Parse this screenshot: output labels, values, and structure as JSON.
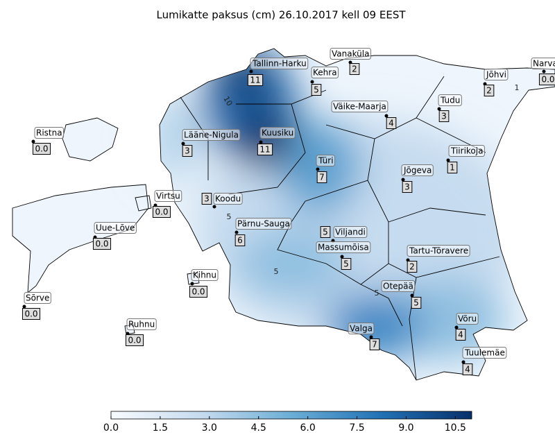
{
  "title": "Lumikatte paksus (cm) 26.10.2017 kell 09 EEST",
  "stations": [
    {
      "name": "Tallinn-Harku",
      "value": "11"
    },
    {
      "name": "Vanaküla",
      "value": "2"
    },
    {
      "name": "Kehra",
      "value": "5"
    },
    {
      "name": "Narva",
      "value": "0.0"
    },
    {
      "name": "Jõhvi",
      "value": "2"
    },
    {
      "name": "Tudu",
      "value": "3"
    },
    {
      "name": "Väike-Maarja",
      "value": "4"
    },
    {
      "name": "Ristna",
      "value": "0.0"
    },
    {
      "name": "Lääne-Nigula",
      "value": "3"
    },
    {
      "name": "Kuusiku",
      "value": "11"
    },
    {
      "name": "Tiirikoja",
      "value": "1"
    },
    {
      "name": "Türi",
      "value": "7"
    },
    {
      "name": "Jõgeva",
      "value": "3"
    },
    {
      "name": "Virtsu",
      "value": "0.0"
    },
    {
      "name": "Koodu",
      "value": "3"
    },
    {
      "name": "Uue-Lõve",
      "value": "0.0"
    },
    {
      "name": "Pärnu-Sauga",
      "value": "6"
    },
    {
      "name": "Viljandi",
      "value": "5"
    },
    {
      "name": "Massumõisa",
      "value": "5"
    },
    {
      "name": "Tartu-Tõravere",
      "value": "2"
    },
    {
      "name": "Kihnu",
      "value": "0.0"
    },
    {
      "name": "Sõrve",
      "value": "0.0"
    },
    {
      "name": "Otepää",
      "value": "5"
    },
    {
      "name": "Ruhnu",
      "value": "0.0"
    },
    {
      "name": "Valga",
      "value": "7"
    },
    {
      "name": "Võru",
      "value": "4"
    },
    {
      "name": "Tuulemäe",
      "value": "4"
    }
  ],
  "contour_labels": [
    "10",
    "5",
    "5",
    "5",
    "1"
  ],
  "colorbar": {
    "range": [
      0,
      11
    ],
    "ticks": [
      {
        "value": 0,
        "label": "0.0"
      },
      {
        "value": 1.5,
        "label": "1.5"
      },
      {
        "value": 3,
        "label": "3.0"
      },
      {
        "value": 4.5,
        "label": "4.5"
      },
      {
        "value": 6,
        "label": "6.0"
      },
      {
        "value": 7.5,
        "label": "7.5"
      },
      {
        "value": 9,
        "label": "9.0"
      },
      {
        "value": 10.5,
        "label": "10.5"
      }
    ]
  }
}
